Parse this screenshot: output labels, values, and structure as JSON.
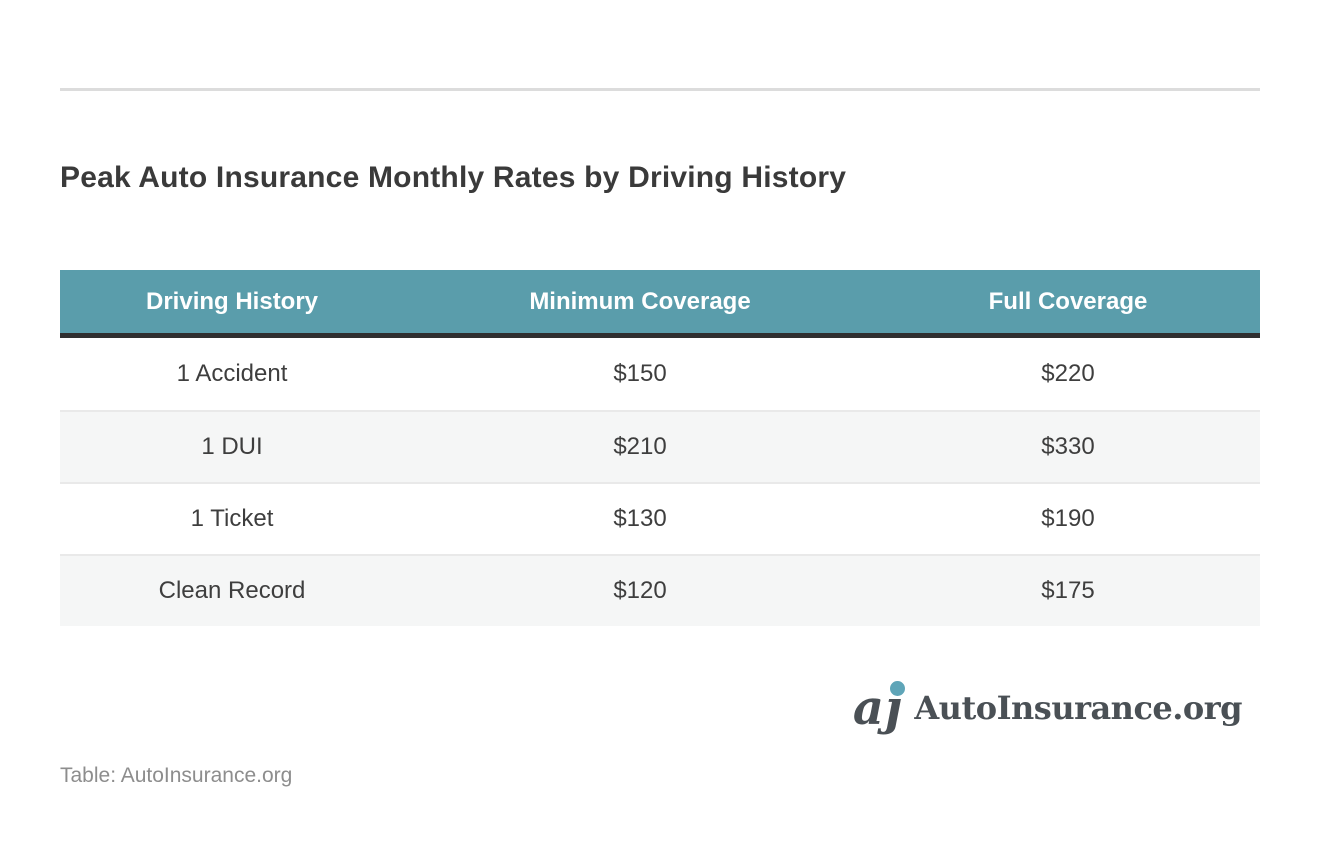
{
  "page": {
    "title": "Peak Auto Insurance Monthly Rates by Driving History",
    "source_note": "Table: AutoInsurance.org"
  },
  "brand": {
    "name": "AutoInsurance.org",
    "icon": "autoinsurance-monogram-icon",
    "icon_glyph": "aȷ"
  },
  "colors": {
    "table_header_bg": "#5a9dab",
    "table_header_text": "#ffffff",
    "table_header_border": "#2f2f2f",
    "row_alt_bg": "#f5f6f6",
    "row_divider": "#e9e9e9",
    "body_text": "#3e3e3e",
    "title_text": "#3a3a3a",
    "top_rule": "#dcdcdc",
    "source_text": "#8d8d8d",
    "logo_text": "#4a5055",
    "logo_dot": "#5fa5b8"
  },
  "chart_data": {
    "type": "table",
    "title": "Peak Auto Insurance Monthly Rates by Driving History",
    "columns": [
      "Driving History",
      "Minimum Coverage",
      "Full Coverage"
    ],
    "rows": [
      [
        "1 Accident",
        "$150",
        "$220"
      ],
      [
        "1 DUI",
        "$210",
        "$330"
      ],
      [
        "1 Ticket",
        "$130",
        "$190"
      ],
      [
        "Clean Record",
        "$120",
        "$175"
      ]
    ],
    "source": "AutoInsurance.org",
    "layout": {
      "striped": true,
      "header_style": "teal-band",
      "alignment": "center"
    }
  }
}
